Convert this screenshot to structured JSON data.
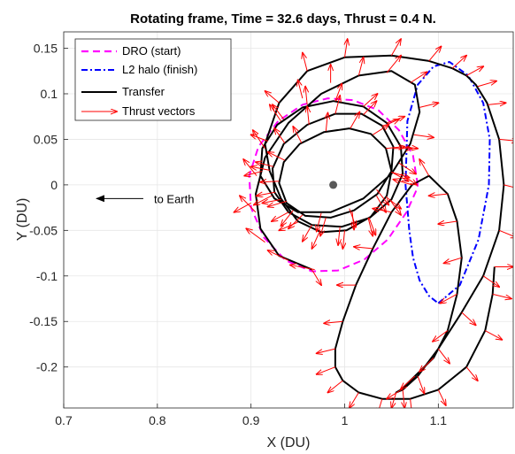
{
  "chart_data": {
    "type": "line",
    "title": "Rotating frame, Time = 32.6 days, Thrust = 0.4 N.",
    "xlabel": "X (DU)",
    "ylabel": "Y (DU)",
    "xlim": [
      0.7,
      1.18
    ],
    "ylim": [
      -0.245,
      0.168
    ],
    "xticks": [
      0.7,
      0.8,
      0.9,
      1,
      1.1
    ],
    "xtick_labels": [
      "0.7",
      "0.8",
      "0.9",
      "1",
      "1.1"
    ],
    "yticks": [
      0.15,
      0.1,
      0.05,
      0,
      -0.05,
      -0.1,
      -0.15,
      -0.2
    ],
    "ytick_labels": [
      "0.15",
      "0.1",
      "0.05",
      "0",
      "-0.05",
      "-0.1",
      "-0.15",
      "-0.2"
    ],
    "grid": true,
    "legend_position": "top-left",
    "legend": [
      {
        "label": "DRO (start)",
        "color": "#ff00ff",
        "style": "dashed"
      },
      {
        "label": "L2 halo (finish)",
        "color": "#0000ff",
        "style": "dashdot"
      },
      {
        "label": "Transfer",
        "color": "#000000",
        "style": "solid"
      },
      {
        "label": "Thrust vectors",
        "color": "#ff0000",
        "style": "arrow"
      }
    ],
    "moon": {
      "x": 0.9878,
      "y": 0.0
    },
    "annotation": {
      "text": "to Earth",
      "arrow_from": [
        0.785,
        -0.015
      ],
      "arrow_to": [
        0.735,
        -0.015
      ]
    },
    "series": [
      {
        "name": "DRO (start)",
        "color": "#ff00ff",
        "style": "dashed",
        "x": [
          1.078,
          1.073,
          1.058,
          1.036,
          1.009,
          0.982,
          0.955,
          0.929,
          0.908,
          0.898,
          0.9,
          0.914,
          0.937,
          0.965,
          0.993,
          1.021,
          1.046,
          1.066,
          1.077,
          1.078
        ],
        "y": [
          0.0,
          0.032,
          0.06,
          0.082,
          0.093,
          0.095,
          0.088,
          0.07,
          0.042,
          0.01,
          -0.025,
          -0.058,
          -0.083,
          -0.095,
          -0.094,
          -0.082,
          -0.06,
          -0.03,
          -0.005,
          0.0
        ]
      },
      {
        "name": "L2 halo (finish)",
        "color": "#0000ff",
        "style": "dashdot",
        "x": [
          1.1,
          1.123,
          1.143,
          1.154,
          1.155,
          1.148,
          1.132,
          1.112,
          1.095,
          1.078,
          1.067,
          1.065,
          1.069,
          1.073,
          1.08,
          1.09,
          1.1
        ],
        "y": [
          -0.13,
          -0.11,
          -0.06,
          0.0,
          0.05,
          0.09,
          0.12,
          0.135,
          0.13,
          0.11,
          0.07,
          0.0,
          -0.05,
          -0.08,
          -0.105,
          -0.122,
          -0.13
        ]
      },
      {
        "name": "Transfer",
        "color": "#000000",
        "style": "solid",
        "x": [
          0.965,
          0.93,
          0.91,
          0.905,
          0.915,
          0.94,
          0.975,
          1.015,
          1.05,
          1.075,
          1.08,
          1.07,
          1.05,
          1.02,
          0.985,
          0.95,
          0.925,
          0.91,
          0.912,
          0.928,
          0.955,
          0.988,
          1.02,
          1.045,
          1.06,
          1.062,
          1.05,
          1.027,
          0.997,
          0.965,
          0.94,
          0.925,
          0.923,
          0.935,
          0.96,
          0.99,
          1.018,
          1.04,
          1.052,
          1.05,
          1.035,
          1.01,
          0.985,
          0.958,
          0.938,
          0.93,
          0.935,
          0.952,
          0.978,
          1.005,
          1.028,
          1.044,
          1.05,
          1.045,
          1.028,
          1.002,
          0.975,
          0.95,
          0.932,
          0.92,
          0.915,
          0.93,
          0.96,
          1.0,
          1.05,
          1.09,
          1.115,
          1.13,
          1.14,
          1.152,
          1.165,
          1.17,
          1.165,
          1.148,
          1.125,
          1.1,
          1.078,
          1.062,
          1.055,
          1.06,
          1.075,
          1.095,
          1.11,
          1.12,
          1.125,
          1.12,
          1.11,
          1.09,
          1.072,
          1.05,
          1.03,
          1.012,
          0.998,
          0.99,
          0.99,
          0.998,
          1.015,
          1.04,
          1.07,
          1.1,
          1.13,
          1.15,
          1.158,
          1.16
        ],
        "y": [
          -0.093,
          -0.078,
          -0.048,
          -0.01,
          0.03,
          0.068,
          0.1,
          0.12,
          0.125,
          0.11,
          0.08,
          0.045,
          0.012,
          -0.015,
          -0.03,
          -0.03,
          -0.015,
          0.01,
          0.04,
          0.066,
          0.085,
          0.092,
          0.086,
          0.068,
          0.042,
          0.012,
          -0.016,
          -0.036,
          -0.046,
          -0.044,
          -0.03,
          -0.008,
          0.018,
          0.045,
          0.066,
          0.078,
          0.078,
          0.065,
          0.042,
          0.015,
          -0.01,
          -0.028,
          -0.036,
          -0.034,
          -0.02,
          0.002,
          0.025,
          0.045,
          0.058,
          0.062,
          0.056,
          0.04,
          0.015,
          -0.012,
          -0.035,
          -0.05,
          -0.052,
          -0.04,
          -0.015,
          0.015,
          0.045,
          0.09,
          0.125,
          0.14,
          0.142,
          0.136,
          0.128,
          0.12,
          0.11,
          0.09,
          0.05,
          0.0,
          -0.05,
          -0.1,
          -0.14,
          -0.18,
          -0.21,
          -0.225,
          -0.228,
          -0.225,
          -0.21,
          -0.19,
          -0.16,
          -0.12,
          -0.08,
          -0.04,
          -0.01,
          0.01,
          0.0,
          -0.03,
          -0.07,
          -0.11,
          -0.15,
          -0.18,
          -0.2,
          -0.215,
          -0.228,
          -0.235,
          -0.235,
          -0.225,
          -0.2,
          -0.16,
          -0.12,
          -0.09
        ]
      }
    ],
    "thrust_vectors": [
      [
        0.968,
        -0.093,
        0.942,
        -0.088
      ],
      [
        0.94,
        -0.083,
        0.918,
        -0.072
      ],
      [
        0.915,
        -0.063,
        0.895,
        -0.048
      ],
      [
        0.905,
        -0.03,
        0.888,
        -0.012
      ],
      [
        0.906,
        0.01,
        0.892,
        0.028
      ],
      [
        0.915,
        0.04,
        0.902,
        0.06
      ],
      [
        0.932,
        0.07,
        0.92,
        0.088
      ],
      [
        0.955,
        0.095,
        0.95,
        0.115
      ],
      [
        0.985,
        0.112,
        0.985,
        0.132
      ],
      [
        1.015,
        0.12,
        1.02,
        0.14
      ],
      [
        1.045,
        0.123,
        1.06,
        0.142
      ],
      [
        1.07,
        0.112,
        1.088,
        0.124
      ],
      [
        1.08,
        0.085,
        1.1,
        0.09
      ],
      [
        1.074,
        0.055,
        1.095,
        0.052
      ],
      [
        1.058,
        0.024,
        1.076,
        0.012
      ],
      [
        1.034,
        -0.005,
        1.047,
        -0.022
      ],
      [
        1.005,
        -0.026,
        1.012,
        -0.046
      ],
      [
        0.975,
        -0.031,
        0.97,
        -0.051
      ],
      [
        0.945,
        -0.028,
        0.932,
        -0.045
      ],
      [
        0.922,
        -0.012,
        0.903,
        -0.022
      ],
      [
        0.912,
        0.015,
        0.893,
        0.01
      ],
      [
        0.918,
        0.048,
        0.9,
        0.055
      ],
      [
        0.935,
        0.072,
        0.923,
        0.088
      ],
      [
        0.96,
        0.088,
        0.958,
        0.108
      ],
      [
        0.99,
        0.092,
        0.997,
        0.111
      ],
      [
        1.02,
        0.086,
        1.035,
        0.1
      ],
      [
        1.045,
        0.068,
        1.064,
        0.075
      ],
      [
        1.058,
        0.042,
        1.078,
        0.04
      ],
      [
        1.06,
        0.012,
        1.077,
        0.0
      ],
      [
        1.048,
        -0.016,
        1.06,
        -0.033
      ],
      [
        1.025,
        -0.036,
        1.03,
        -0.056
      ],
      [
        0.995,
        -0.046,
        0.993,
        -0.066
      ],
      [
        0.965,
        -0.044,
        0.955,
        -0.062
      ],
      [
        0.94,
        -0.03,
        0.922,
        -0.04
      ],
      [
        0.926,
        -0.008,
        0.906,
        -0.012
      ],
      [
        0.924,
        0.02,
        0.905,
        0.025
      ],
      [
        0.936,
        0.046,
        0.925,
        0.062
      ],
      [
        0.962,
        0.066,
        0.96,
        0.086
      ],
      [
        0.99,
        0.078,
        0.995,
        0.098
      ],
      [
        1.02,
        0.077,
        1.034,
        0.092
      ],
      [
        1.04,
        0.064,
        1.058,
        0.072
      ],
      [
        1.052,
        0.04,
        1.072,
        0.04
      ],
      [
        1.05,
        0.014,
        1.068,
        0.004
      ],
      [
        1.034,
        -0.012,
        1.044,
        -0.03
      ],
      [
        1.008,
        -0.029,
        1.01,
        -0.049
      ],
      [
        0.98,
        -0.036,
        0.974,
        -0.056
      ],
      [
        0.955,
        -0.033,
        0.94,
        -0.048
      ],
      [
        0.938,
        -0.018,
        0.918,
        -0.024
      ],
      [
        0.93,
        0.004,
        0.91,
        0.003
      ],
      [
        0.936,
        0.027,
        0.918,
        0.036
      ],
      [
        0.954,
        0.046,
        0.945,
        0.064
      ],
      [
        0.98,
        0.059,
        0.982,
        0.079
      ],
      [
        1.006,
        0.062,
        1.016,
        0.08
      ],
      [
        1.03,
        0.055,
        1.047,
        0.066
      ],
      [
        1.044,
        0.04,
        1.064,
        0.042
      ],
      [
        1.05,
        0.014,
        1.069,
        0.008
      ],
      [
        1.044,
        -0.013,
        1.06,
        -0.026
      ],
      [
        1.026,
        -0.036,
        1.033,
        -0.055
      ],
      [
        1.0,
        -0.05,
        0.998,
        -0.07
      ],
      [
        0.973,
        -0.052,
        0.965,
        -0.07
      ],
      [
        0.95,
        -0.041,
        0.93,
        -0.05
      ],
      [
        0.932,
        -0.016,
        0.912,
        -0.02
      ],
      [
        0.92,
        0.016,
        0.9,
        0.02
      ],
      [
        0.93,
        0.09,
        0.915,
        0.103
      ],
      [
        0.96,
        0.125,
        0.955,
        0.145
      ],
      [
        1.0,
        0.14,
        1.003,
        0.16
      ],
      [
        1.05,
        0.142,
        1.06,
        0.16
      ],
      [
        1.09,
        0.136,
        1.103,
        0.152
      ],
      [
        1.115,
        0.128,
        1.13,
        0.142
      ],
      [
        1.13,
        0.12,
        1.148,
        0.13
      ],
      [
        1.142,
        0.108,
        1.162,
        0.114
      ],
      [
        1.153,
        0.088,
        1.172,
        0.09
      ],
      [
        1.165,
        0.05,
        1.185,
        0.048
      ],
      [
        1.17,
        0.0,
        1.19,
        -0.005
      ],
      [
        1.165,
        -0.05,
        1.184,
        -0.058
      ],
      [
        1.148,
        -0.1,
        1.165,
        -0.112
      ],
      [
        1.125,
        -0.14,
        1.14,
        -0.154
      ],
      [
        1.1,
        -0.18,
        1.112,
        -0.196
      ],
      [
        1.078,
        -0.21,
        1.085,
        -0.229
      ],
      [
        1.062,
        -0.225,
        1.064,
        -0.245
      ],
      [
        1.055,
        -0.228,
        1.05,
        -0.245
      ],
      [
        1.062,
        -0.224,
        1.045,
        -0.235
      ],
      [
        1.075,
        -0.21,
        1.06,
        -0.224
      ],
      [
        1.095,
        -0.19,
        1.08,
        -0.205
      ],
      [
        1.11,
        -0.16,
        1.094,
        -0.172
      ],
      [
        1.12,
        -0.12,
        1.102,
        -0.13
      ],
      [
        1.125,
        -0.08,
        1.106,
        -0.086
      ],
      [
        1.12,
        -0.04,
        1.1,
        -0.043
      ],
      [
        1.11,
        -0.01,
        1.09,
        -0.012
      ],
      [
        1.09,
        0.01,
        1.08,
        0.028
      ],
      [
        1.072,
        0.0,
        1.052,
        0.006
      ],
      [
        1.05,
        -0.03,
        1.03,
        -0.026
      ],
      [
        1.03,
        -0.07,
        1.01,
        -0.068
      ],
      [
        1.012,
        -0.11,
        0.992,
        -0.11
      ],
      [
        0.998,
        -0.15,
        0.978,
        -0.152
      ],
      [
        0.99,
        -0.18,
        0.97,
        -0.185
      ],
      [
        0.99,
        -0.2,
        0.97,
        -0.208
      ],
      [
        0.998,
        -0.215,
        0.982,
        -0.228
      ],
      [
        1.015,
        -0.228,
        1.005,
        -0.245
      ],
      [
        1.04,
        -0.235,
        1.035,
        -0.252
      ],
      [
        1.07,
        -0.235,
        1.072,
        -0.252
      ],
      [
        1.1,
        -0.225,
        1.108,
        -0.242
      ],
      [
        1.13,
        -0.2,
        1.142,
        -0.215
      ],
      [
        1.15,
        -0.16,
        1.168,
        -0.17
      ],
      [
        1.158,
        -0.12,
        1.178,
        -0.125
      ],
      [
        1.16,
        -0.09,
        1.18,
        -0.09
      ],
      [
        0.965,
        -0.093,
        0.975,
        -0.11
      ],
      [
        0.9,
        -0.02,
        0.882,
        -0.03
      ]
    ]
  }
}
